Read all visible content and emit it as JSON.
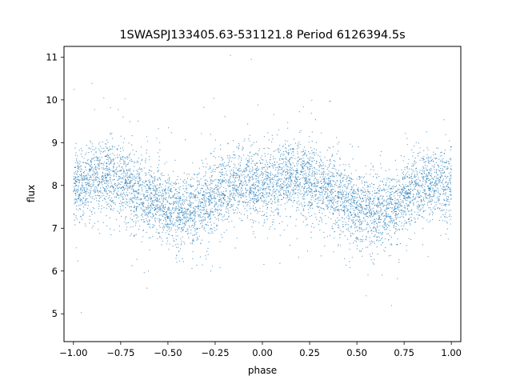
{
  "chart_data": {
    "type": "scatter",
    "title": "1SWASPJ133405.63-531121.8 Period 6126394.5s",
    "xlabel": "phase",
    "ylabel": "flux",
    "xlim": [
      -1.05,
      1.05
    ],
    "ylim": [
      4.35,
      11.25
    ],
    "x_ticks": [
      -1.0,
      -0.75,
      -0.5,
      -0.25,
      0.0,
      0.25,
      0.5,
      0.75,
      1.0
    ],
    "x_tick_labels": [
      "−1.00",
      "−0.75",
      "−0.50",
      "−0.25",
      "0.00",
      "0.25",
      "0.50",
      "0.75",
      "1.00"
    ],
    "y_ticks": [
      5,
      6,
      7,
      8,
      9,
      10,
      11
    ],
    "y_tick_labels": [
      "5",
      "6",
      "7",
      "8",
      "9",
      "10",
      "11"
    ],
    "grid": false,
    "legend": "none",
    "marker_color": "#1f77b4",
    "profile": {
      "phase": [
        0.0,
        0.1,
        0.2,
        0.3,
        0.4,
        0.5,
        0.6,
        0.7,
        0.8,
        0.9,
        1.0
      ],
      "median_flux": [
        7.95,
        8.15,
        8.25,
        8.0,
        7.75,
        7.45,
        7.35,
        7.55,
        7.95,
        8.05,
        7.95
      ]
    }
  }
}
